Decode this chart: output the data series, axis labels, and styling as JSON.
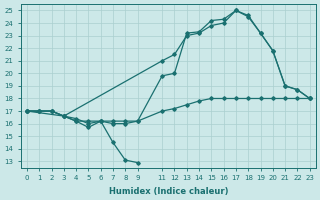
{
  "xlabel": "Humidex (Indice chaleur)",
  "xlim": [
    -0.5,
    23.5
  ],
  "ylim": [
    12.5,
    25.5
  ],
  "background_color": "#cce8e8",
  "grid_color": "#aacfcf",
  "line_color": "#1a7070",
  "line_width": 0.9,
  "marker": "D",
  "marker_size": 1.8,
  "yticks": [
    13,
    14,
    15,
    16,
    17,
    18,
    19,
    20,
    21,
    22,
    23,
    24,
    25
  ],
  "xtick_vals": [
    0,
    1,
    2,
    3,
    4,
    5,
    6,
    7,
    8,
    9,
    11,
    12,
    13,
    14,
    15,
    16,
    17,
    18,
    19,
    20,
    21,
    22,
    23
  ],
  "line1_x": [
    0,
    1,
    2,
    3,
    4,
    5,
    6,
    7,
    8,
    9
  ],
  "line1_y": [
    17.0,
    17.0,
    17.0,
    16.6,
    16.2,
    15.7,
    16.2,
    14.5,
    13.1,
    12.9
  ],
  "line2_x": [
    0,
    1,
    2,
    3,
    4,
    5,
    6,
    7,
    8,
    9,
    11,
    12,
    13,
    14,
    15,
    16,
    17,
    18,
    19,
    20,
    21,
    22,
    23
  ],
  "line2_y": [
    17.0,
    17.0,
    17.0,
    16.6,
    16.2,
    16.2,
    16.2,
    16.2,
    16.2,
    16.2,
    17.0,
    17.2,
    17.5,
    17.8,
    18.0,
    18.0,
    18.0,
    18.0,
    18.0,
    18.0,
    18.0,
    18.0,
    18.0
  ],
  "line3_x": [
    0,
    1,
    2,
    3,
    4,
    5,
    6,
    7,
    8,
    9,
    11,
    12,
    13,
    14,
    15,
    16,
    17,
    18,
    19,
    20,
    21,
    22,
    23
  ],
  "line3_y": [
    17.0,
    17.0,
    17.0,
    16.6,
    16.4,
    16.0,
    16.2,
    16.0,
    16.0,
    16.2,
    19.8,
    20.0,
    23.2,
    23.3,
    24.2,
    24.3,
    25.0,
    24.5,
    23.2,
    21.8,
    19.0,
    18.7,
    18.0
  ],
  "line4_x": [
    0,
    3,
    11,
    12,
    13,
    14,
    15,
    16,
    17,
    18,
    19,
    20,
    21,
    22,
    23
  ],
  "line4_y": [
    17.0,
    16.6,
    21.0,
    21.5,
    23.0,
    23.2,
    23.8,
    24.0,
    25.0,
    24.6,
    23.2,
    21.8,
    19.0,
    18.7,
    18.0
  ]
}
